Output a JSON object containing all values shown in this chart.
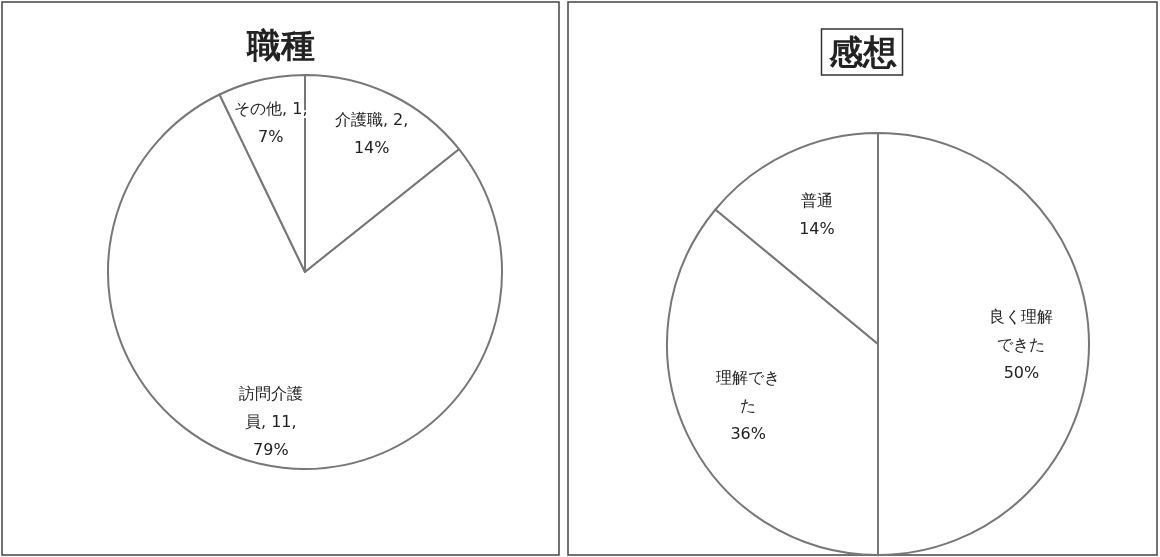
{
  "chart_data": [
    {
      "type": "pie",
      "title": "職種",
      "categories": [
        "介護職",
        "訪問介護員",
        "その他"
      ],
      "values": [
        2,
        11,
        1
      ],
      "value_labels": [
        "2, 14%",
        "11, 79%",
        "1, 7%"
      ],
      "colors": [
        "#ffffff",
        "#ffffff",
        "#ffffff"
      ]
    },
    {
      "type": "pie",
      "title": "感想",
      "categories": [
        "良く理解できた",
        "理解できた",
        "普通"
      ],
      "values": [
        50,
        36,
        14
      ],
      "value_labels": [
        "50%",
        "36%",
        "14%"
      ],
      "colors": [
        "#ffffff",
        "#ffffff",
        "#ffffff"
      ]
    }
  ]
}
